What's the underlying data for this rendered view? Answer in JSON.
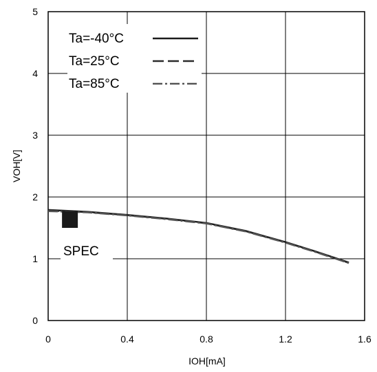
{
  "chart_data": {
    "type": "line",
    "title": "",
    "xlabel": "IOH[mA]",
    "ylabel": "VOH[V]",
    "xlim": [
      0,
      1.6
    ],
    "ylim": [
      0,
      5
    ],
    "x_ticks": [
      "0",
      "0.4",
      "0.8",
      "1.2",
      "1.6"
    ],
    "y_ticks": [
      "0",
      "1",
      "2",
      "3",
      "4",
      "5"
    ],
    "grid": true,
    "legend_position": "top-left",
    "series": [
      {
        "name": "Ta=-40°C",
        "style": "solid",
        "color": "#1a1a1a",
        "points": [
          [
            0,
            1.79
          ],
          [
            0.2,
            1.76
          ],
          [
            0.4,
            1.71
          ],
          [
            0.6,
            1.65
          ],
          [
            0.8,
            1.58
          ],
          [
            1.0,
            1.45
          ],
          [
            1.2,
            1.27
          ],
          [
            1.35,
            1.12
          ],
          [
            1.52,
            0.94
          ]
        ]
      },
      {
        "name": "Ta=25°C",
        "style": "dashed",
        "color": "#2a2a2a",
        "points": [
          [
            0,
            1.78
          ],
          [
            0.2,
            1.755
          ],
          [
            0.4,
            1.705
          ],
          [
            0.6,
            1.645
          ],
          [
            0.8,
            1.575
          ],
          [
            1.0,
            1.445
          ],
          [
            1.2,
            1.265
          ],
          [
            1.35,
            1.115
          ],
          [
            1.52,
            0.935
          ]
        ]
      },
      {
        "name": "Ta=85°C",
        "style": "dashdot",
        "color": "#555555",
        "points": [
          [
            0,
            1.77
          ],
          [
            0.2,
            1.75
          ],
          [
            0.4,
            1.7
          ],
          [
            0.6,
            1.64
          ],
          [
            0.8,
            1.57
          ],
          [
            1.0,
            1.44
          ],
          [
            1.2,
            1.26
          ],
          [
            1.35,
            1.11
          ],
          [
            1.52,
            0.93
          ]
        ]
      }
    ],
    "annotations": [
      {
        "label": "SPEC",
        "marker": "filled-square",
        "x_range": [
          0.07,
          0.15
        ],
        "y_range": [
          1.5,
          1.77
        ]
      }
    ]
  }
}
